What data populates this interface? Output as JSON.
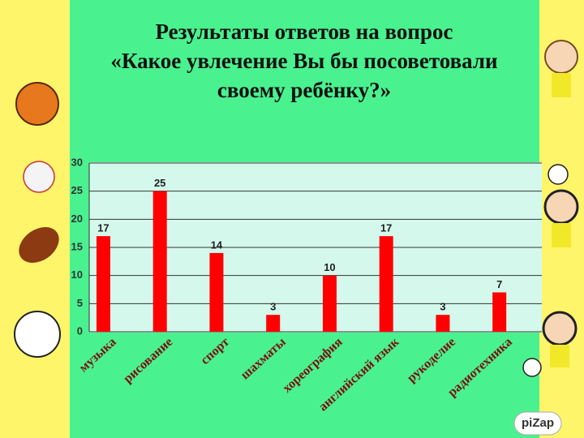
{
  "chart_data": {
    "type": "bar",
    "title": [
      "Результаты ответов  на вопрос",
      "«Какое увлечение Вы бы посоветовали",
      "своему ребёнку?»"
    ],
    "categories": [
      "музыка",
      "рисование",
      "спорт",
      "шахматы",
      "хореография",
      "английский язык",
      "рукоделие",
      "радиотехника"
    ],
    "values": [
      17,
      25,
      14,
      3,
      10,
      17,
      3,
      7
    ],
    "color": "#ff0000",
    "ylim": [
      0,
      30
    ],
    "yticks": [
      0,
      5,
      10,
      15,
      20,
      25,
      30
    ],
    "grid": true
  },
  "watermark": "piZap"
}
